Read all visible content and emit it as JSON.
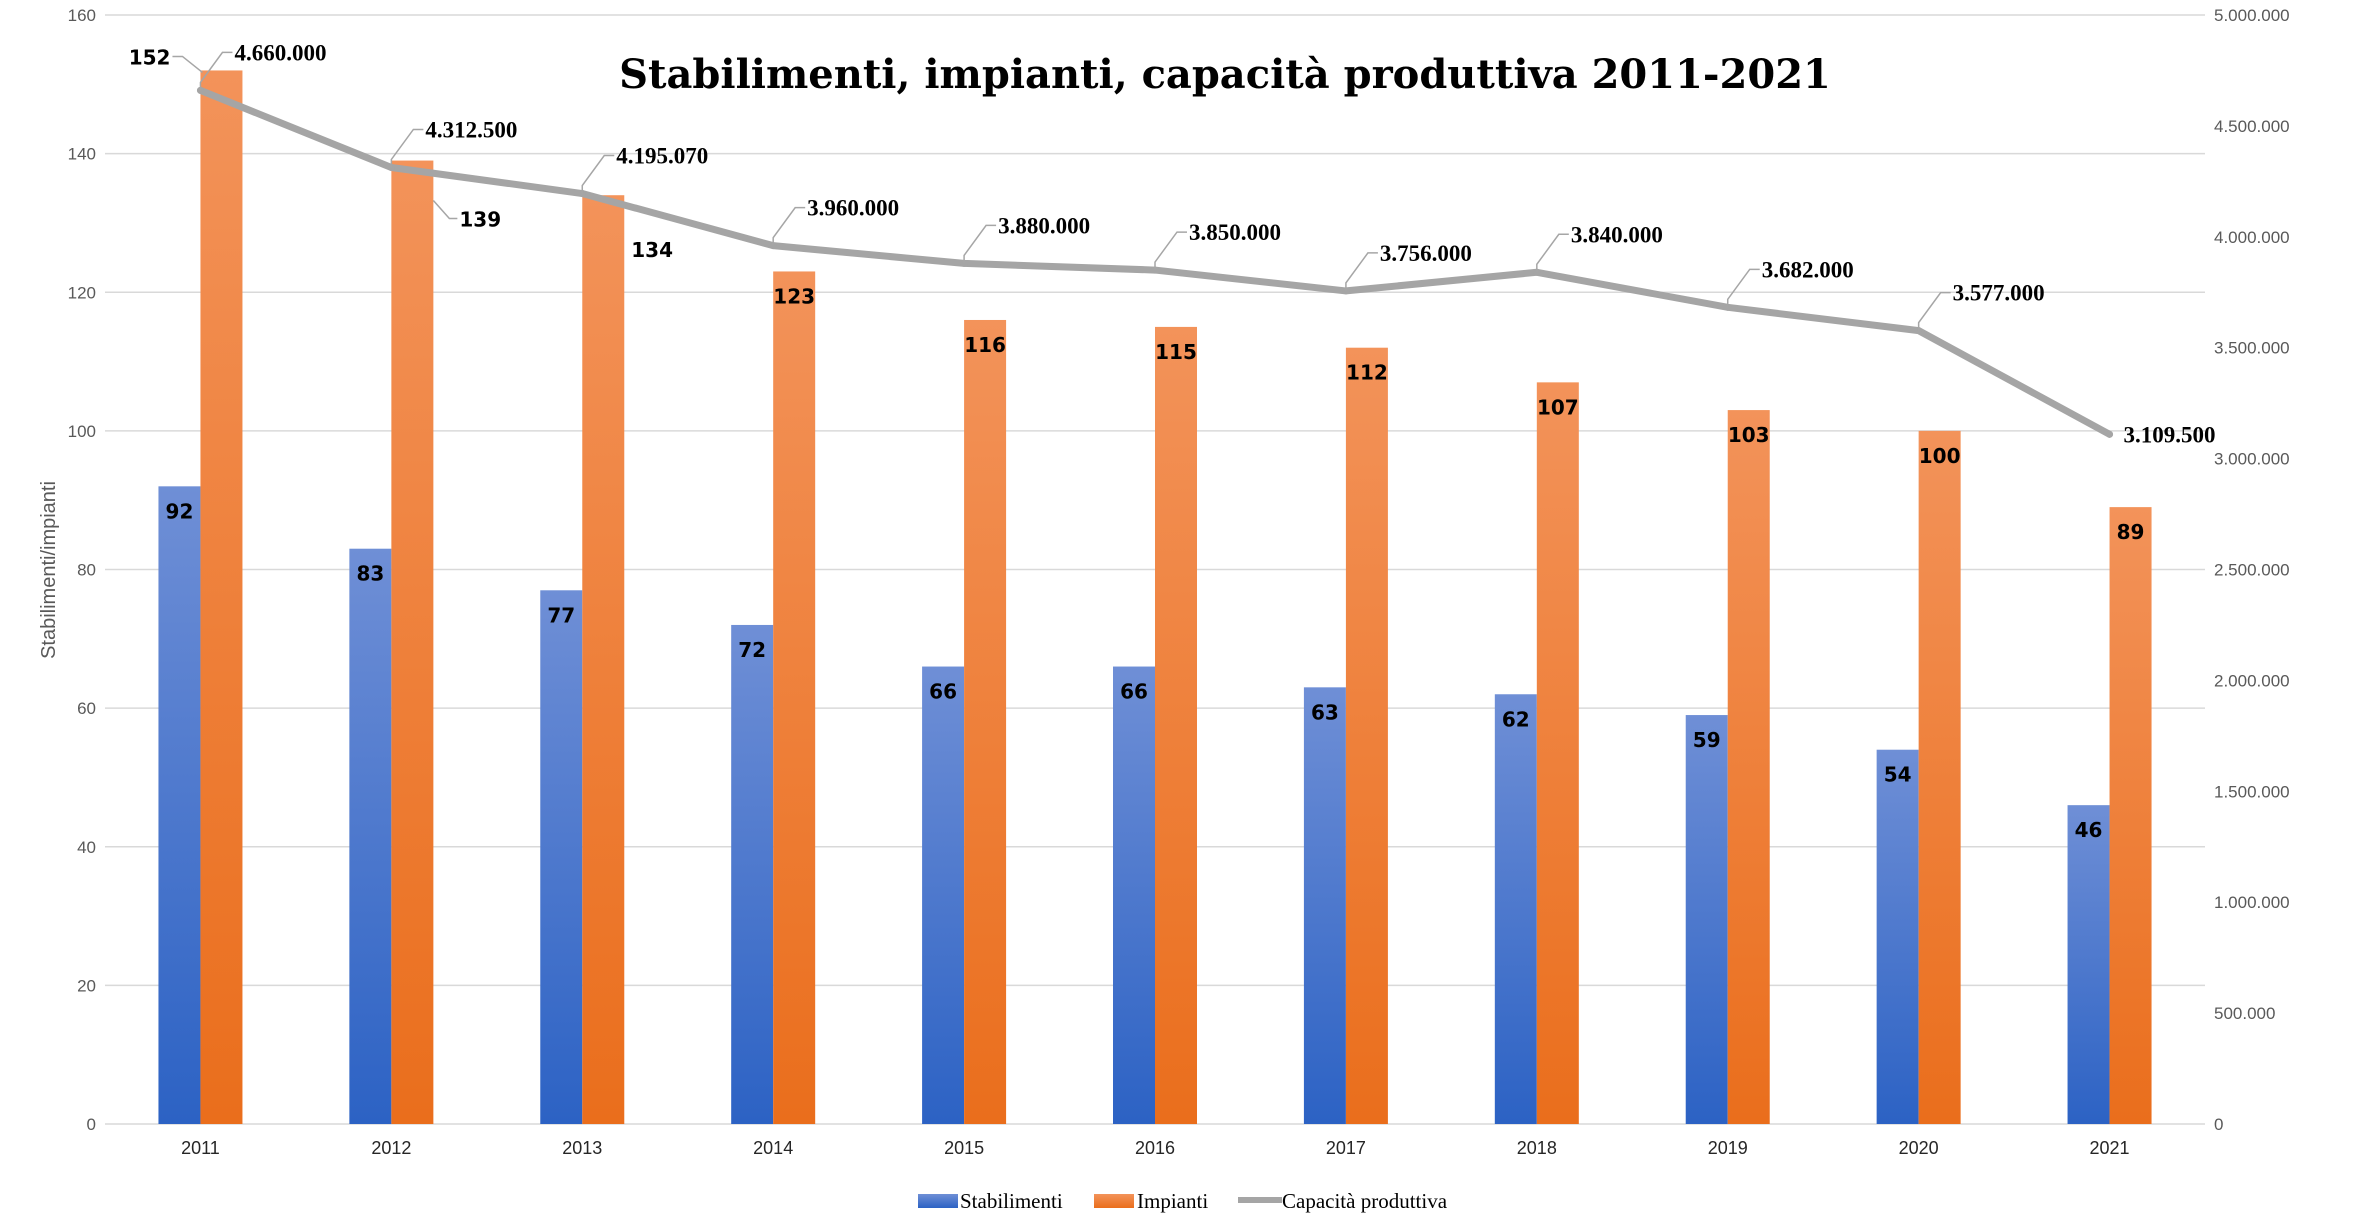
{
  "chart_data": {
    "type": "bar",
    "title": "Stabilimenti, impianti, capacità produttiva 2011-2021",
    "ylabel": "Stabilimenti/impianti",
    "categories": [
      "2011",
      "2012",
      "2013",
      "2014",
      "2015",
      "2016",
      "2017",
      "2018",
      "2019",
      "2020",
      "2021"
    ],
    "ylim": [
      0,
      160
    ],
    "yticks": [
      "0",
      "20",
      "40",
      "60",
      "80",
      "100",
      "120",
      "140",
      "160"
    ],
    "y2lim": [
      0,
      5000000
    ],
    "y2ticks": [
      "0",
      "500.000",
      "1.000.000",
      "1.500.000",
      "2.000.000",
      "2.500.000",
      "3.000.000",
      "3.500.000",
      "4.000.000",
      "4.500.000",
      "5.000.000"
    ],
    "grid": true,
    "legend_position": "bottom",
    "series": [
      {
        "name": "Stabilimenti",
        "type": "bar",
        "axis": "left",
        "color": "#4472c4",
        "values": [
          92,
          83,
          77,
          72,
          66,
          66,
          63,
          62,
          59,
          54,
          46
        ],
        "labels": [
          "92",
          "83",
          "77",
          "72",
          "66",
          "66",
          "63",
          "62",
          "59",
          "54",
          "46"
        ]
      },
      {
        "name": "Impianti",
        "type": "bar",
        "axis": "left",
        "color": "#ed7d31",
        "values": [
          152,
          139,
          134,
          123,
          116,
          115,
          112,
          107,
          103,
          100,
          89
        ],
        "labels": [
          "152",
          "139",
          "134",
          "123",
          "116",
          "115",
          "112",
          "107",
          "103",
          "100",
          "89"
        ]
      },
      {
        "name": "Capacità produttiva",
        "type": "line",
        "axis": "right",
        "color": "#a5a5a5",
        "values": [
          4660000,
          4312500,
          4195070,
          3960000,
          3880000,
          3850000,
          3756000,
          3840000,
          3682000,
          3577000,
          3109500
        ],
        "labels": [
          "4.660.000",
          "4.312.500",
          "4.195.070",
          "3.960.000",
          "3.880.000",
          "3.850.000",
          "3.756.000",
          "3.840.000",
          "3.682.000",
          "3.577.000",
          "3.109.500"
        ]
      }
    ]
  }
}
